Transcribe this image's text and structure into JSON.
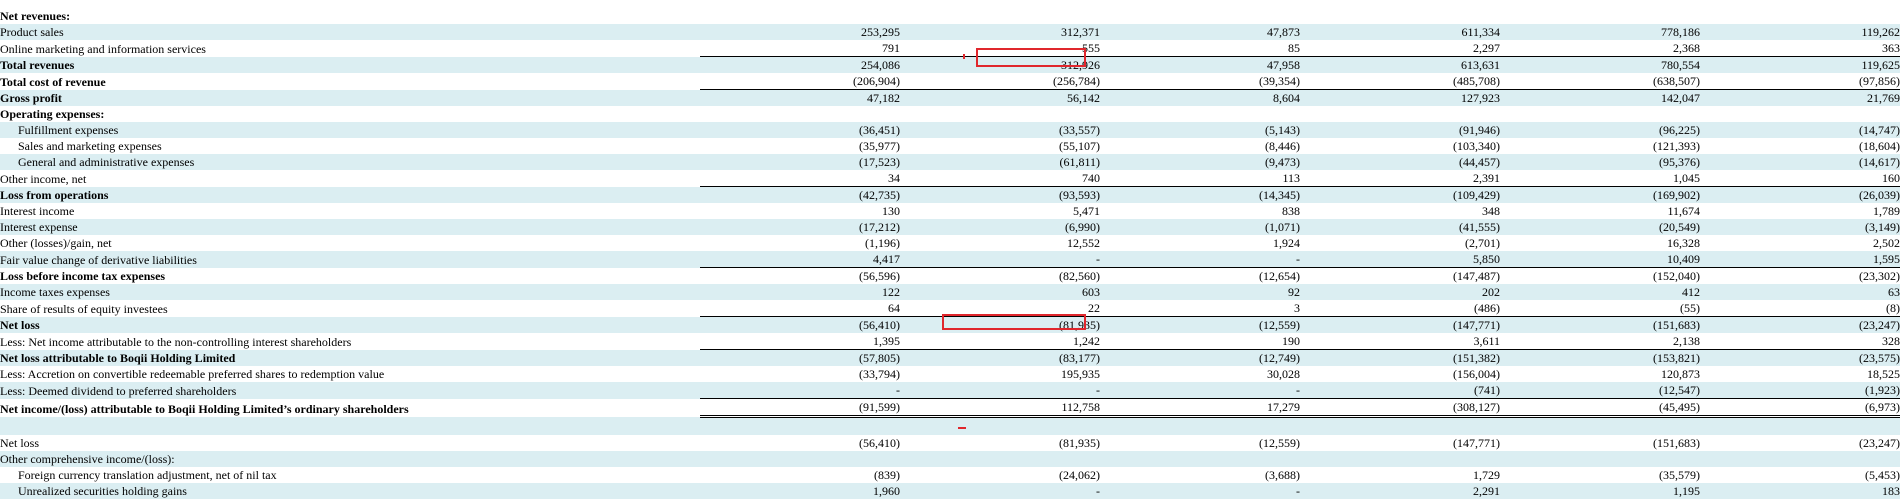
{
  "rows": [
    {
      "label": "Net revenues:",
      "bold": true,
      "shade": false,
      "indent": false,
      "values": [
        "",
        "",
        "",
        "",
        "",
        ""
      ]
    },
    {
      "label": "Product sales",
      "bold": false,
      "shade": true,
      "indent": false,
      "values": [
        "253,295",
        "312,371",
        "47,873",
        "611,334",
        "778,186",
        "119,262"
      ]
    },
    {
      "label": "Online marketing and information services",
      "bold": false,
      "shade": false,
      "indent": false,
      "values": [
        "791",
        "555",
        "85",
        "2,297",
        "2,368",
        "363"
      ]
    },
    {
      "label": "Total revenues",
      "bold": true,
      "shade": true,
      "indent": false,
      "top_border": true,
      "values": [
        "254,086",
        "312,926",
        "47,958",
        "613,631",
        "780,554",
        "119,625"
      ]
    },
    {
      "label": "Total cost of revenue",
      "bold": true,
      "shade": false,
      "indent": false,
      "values": [
        "(206,904)",
        "(256,784)",
        "(39,354)",
        "(485,708)",
        "(638,507)",
        "(97,856)"
      ]
    },
    {
      "label": "Gross profit",
      "bold": true,
      "shade": true,
      "indent": false,
      "top_border": true,
      "values": [
        "47,182",
        "56,142",
        "8,604",
        "127,923",
        "142,047",
        "21,769"
      ]
    },
    {
      "label": "Operating expenses:",
      "bold": true,
      "shade": false,
      "indent": false,
      "values": [
        "",
        "",
        "",
        "",
        "",
        ""
      ]
    },
    {
      "label": "Fulfillment expenses",
      "bold": false,
      "shade": true,
      "indent": true,
      "values": [
        "(36,451)",
        "(33,557)",
        "(5,143)",
        "(91,946)",
        "(96,225)",
        "(14,747)"
      ]
    },
    {
      "label": "Sales and marketing expenses",
      "bold": false,
      "shade": false,
      "indent": true,
      "values": [
        "(35,977)",
        "(55,107)",
        "(8,446)",
        "(103,340)",
        "(121,393)",
        "(18,604)"
      ]
    },
    {
      "label": "General and administrative expenses",
      "bold": false,
      "shade": true,
      "indent": true,
      "values": [
        "(17,523)",
        "(61,811)",
        "(9,473)",
        "(44,457)",
        "(95,376)",
        "(14,617)"
      ]
    },
    {
      "label": "Other income, net",
      "bold": false,
      "shade": false,
      "indent": false,
      "values": [
        "34",
        "740",
        "113",
        "2,391",
        "1,045",
        "160"
      ]
    },
    {
      "label": "Loss from operations",
      "bold": true,
      "shade": true,
      "indent": false,
      "top_border": true,
      "values": [
        "(42,735)",
        "(93,593)",
        "(14,345)",
        "(109,429)",
        "(169,902)",
        "(26,039)"
      ]
    },
    {
      "label": "Interest income",
      "bold": false,
      "shade": false,
      "indent": false,
      "values": [
        "130",
        "5,471",
        "838",
        "348",
        "11,674",
        "1,789"
      ]
    },
    {
      "label": "Interest expense",
      "bold": false,
      "shade": true,
      "indent": false,
      "values": [
        "(17,212)",
        "(6,990)",
        "(1,071)",
        "(41,555)",
        "(20,549)",
        "(3,149)"
      ]
    },
    {
      "label": "Other (losses)/gain, net",
      "bold": false,
      "shade": false,
      "indent": false,
      "values": [
        "(1,196)",
        "12,552",
        "1,924",
        "(2,701)",
        "16,328",
        "2,502"
      ]
    },
    {
      "label": "Fair value change of derivative liabilities",
      "bold": false,
      "shade": true,
      "indent": false,
      "values": [
        "4,417",
        "-",
        "-",
        "5,850",
        "10,409",
        "1,595"
      ]
    },
    {
      "label": "Loss before income tax expenses",
      "bold": true,
      "shade": false,
      "indent": false,
      "top_border": true,
      "values": [
        "(56,596)",
        "(82,560)",
        "(12,654)",
        "(147,487)",
        "(152,040)",
        "(23,302)"
      ]
    },
    {
      "label": "Income taxes expenses",
      "bold": false,
      "shade": true,
      "indent": false,
      "values": [
        "122",
        "603",
        "92",
        "202",
        "412",
        "63"
      ]
    },
    {
      "label": "Share of results of equity investees",
      "bold": false,
      "shade": false,
      "indent": false,
      "values": [
        "64",
        "22",
        "3",
        "(486)",
        "(55)",
        "(8)"
      ]
    },
    {
      "label": "Net loss",
      "bold": true,
      "shade": true,
      "indent": false,
      "top_border": true,
      "values": [
        "(56,410)",
        "(81,935)",
        "(12,559)",
        "(147,771)",
        "(151,683)",
        "(23,247)"
      ]
    },
    {
      "label": "Less: Net income attributable to the non-controlling interest shareholders",
      "bold": false,
      "shade": false,
      "indent": false,
      "values": [
        "1,395",
        "1,242",
        "190",
        "3,611",
        "2,138",
        "328"
      ]
    },
    {
      "label": "Net loss attributable to Boqii Holding Limited",
      "bold": true,
      "shade": true,
      "indent": false,
      "top_border": true,
      "values": [
        "(57,805)",
        "(83,177)",
        "(12,749)",
        "(151,382)",
        "(153,821)",
        "(23,575)"
      ]
    },
    {
      "label": "Less: Accretion on convertible redeemable preferred shares to redemption value",
      "bold": false,
      "shade": false,
      "indent": false,
      "values": [
        "(33,794)",
        "195,935",
        "30,028",
        "(156,004)",
        "120,873",
        "18,525"
      ]
    },
    {
      "label": "Less: Deemed dividend to preferred shareholders",
      "bold": false,
      "shade": true,
      "indent": false,
      "values": [
        "-",
        "-",
        "-",
        "(741)",
        "(12,547)",
        "(1,923)"
      ]
    },
    {
      "label": "Net income/(loss) attributable to Boqii Holding Limited’s ordinary shareholders",
      "bold": true,
      "shade": false,
      "indent": false,
      "top_border": true,
      "double": true,
      "values": [
        "(91,599)",
        "112,758",
        "17,279",
        "(308,127)",
        "(45,495)",
        "(6,973)"
      ]
    },
    {
      "label": "",
      "bold": false,
      "shade": true,
      "indent": false,
      "spacer": true,
      "values": [
        "",
        "",
        "",
        "",
        "",
        ""
      ]
    },
    {
      "label": "Net loss",
      "bold": false,
      "shade": false,
      "indent": false,
      "values": [
        "(56,410)",
        "(81,935)",
        "(12,559)",
        "(147,771)",
        "(151,683)",
        "(23,247)"
      ]
    },
    {
      "label": "Other comprehensive income/(loss):",
      "bold": false,
      "shade": true,
      "indent": false,
      "values": [
        "",
        "",
        "",
        "",
        "",
        ""
      ]
    },
    {
      "label": "Foreign currency translation adjustment, net of nil tax",
      "bold": false,
      "shade": false,
      "indent": true,
      "values": [
        "(839)",
        "(24,062)",
        "(3,688)",
        "1,729",
        "(35,579)",
        "(5,453)"
      ]
    },
    {
      "label": "Unrealized securities holding gains",
      "bold": false,
      "shade": true,
      "indent": true,
      "values": [
        "1,960",
        "-",
        "-",
        "2,291",
        "1,195",
        "183"
      ]
    }
  ],
  "annotations": {
    "highlight_color": "#e0272d",
    "shade_color": "#dbeef2"
  }
}
